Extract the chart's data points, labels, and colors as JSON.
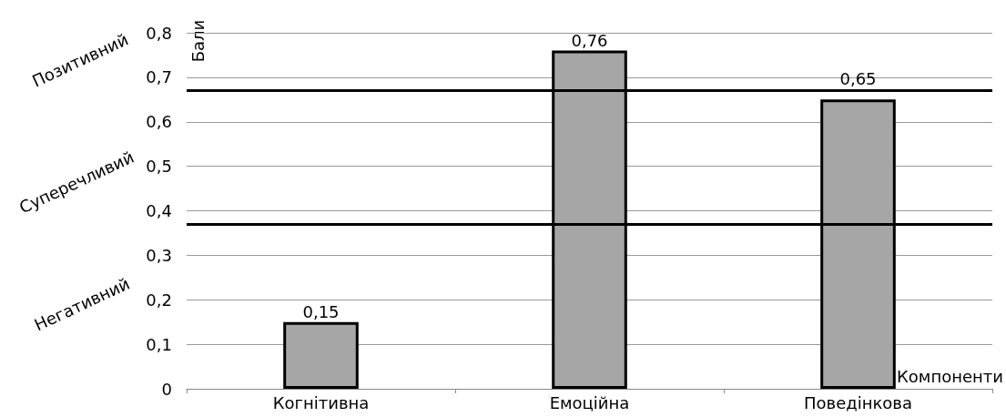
{
  "chart_data": {
    "type": "bar",
    "categories": [
      "Когнітивна",
      "Емоційна",
      "Поведінкова"
    ],
    "values": [
      0.15,
      0.76,
      0.65
    ],
    "value_labels": [
      "0,15",
      "0,76",
      "0,65"
    ],
    "color": "#a6a6a6",
    "xlabel": "Компоненти",
    "ylabel": "Бали",
    "ylim": [
      0,
      0.8
    ],
    "yticks": [
      {
        "value": 0,
        "label": "0"
      },
      {
        "value": 0.1,
        "label": "0,1"
      },
      {
        "value": 0.2,
        "label": "0,2"
      },
      {
        "value": 0.3,
        "label": "0,3"
      },
      {
        "value": 0.4,
        "label": "0,4"
      },
      {
        "value": 0.5,
        "label": "0,5"
      },
      {
        "value": 0.6,
        "label": "0,6"
      },
      {
        "value": 0.7,
        "label": "0,7"
      },
      {
        "value": 0.8,
        "label": "0,8"
      }
    ],
    "grid": "y",
    "ref_lines": [
      {
        "axis": "y",
        "value": 0.67,
        "color": "#000000"
      },
      {
        "axis": "y",
        "value": 0.37,
        "color": "#000000"
      }
    ],
    "annotations": [
      "Позитивний",
      "Суперечливий",
      "Негативний"
    ]
  }
}
